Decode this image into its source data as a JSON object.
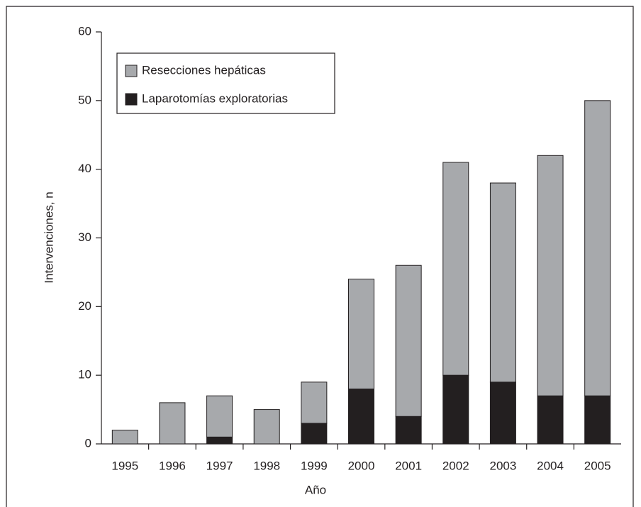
{
  "chart_data": {
    "type": "stacked-bar",
    "x_label": "Año",
    "y_label": "Intervenciones, n",
    "categories": [
      "1995",
      "1996",
      "1997",
      "1998",
      "1999",
      "2000",
      "2001",
      "2002",
      "2003",
      "2004",
      "2005"
    ],
    "series": [
      {
        "name": "Laparotomías exploratorias",
        "color": "#231f20",
        "values": [
          0,
          0,
          1,
          0,
          3,
          8,
          4,
          10,
          9,
          7,
          7
        ]
      },
      {
        "name": "Resecciones hepáticas",
        "color": "#a7a9ac",
        "values": [
          2,
          6,
          6,
          5,
          6,
          16,
          22,
          31,
          29,
          35,
          43
        ]
      }
    ],
    "legend_order": [
      1,
      0
    ],
    "ylim": [
      0,
      60
    ],
    "yticks": [
      0,
      10,
      20,
      30,
      40,
      50,
      60
    ]
  }
}
